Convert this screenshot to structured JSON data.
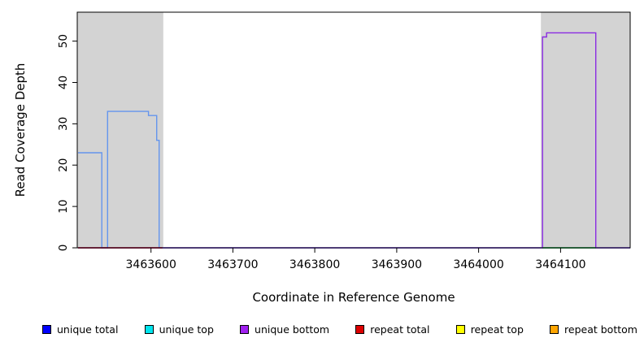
{
  "chart_data": {
    "type": "line",
    "title": "",
    "xlabel": "Coordinate in Reference Genome",
    "ylabel": "Read Coverage Depth",
    "xlim": [
      3463510,
      3464185
    ],
    "ylim": [
      0,
      57
    ],
    "xticks": [
      3463600,
      3463700,
      3463800,
      3463900,
      3464000,
      3464100
    ],
    "yticks": [
      0,
      10,
      20,
      30,
      40,
      50
    ],
    "grid": false,
    "legend_position": "bottom",
    "plot_bg": "#ffffff",
    "shaded_region_color": "#d3d3d3",
    "shaded_regions": [
      {
        "x0": 3463510,
        "x1": 3463615
      },
      {
        "x0": 3464076,
        "x1": 3464185
      }
    ],
    "series": [
      {
        "name": "unique total (left coverage block)",
        "color": "#6495ed",
        "points": [
          [
            3463511,
            23
          ],
          [
            3463540,
            23
          ],
          [
            3463540,
            0
          ],
          [
            3463547,
            0
          ],
          [
            3463547,
            33
          ],
          [
            3463597,
            33
          ],
          [
            3463597,
            32
          ],
          [
            3463607,
            32
          ],
          [
            3463607,
            26
          ],
          [
            3463610,
            26
          ],
          [
            3463610,
            0
          ],
          [
            3464185,
            0
          ]
        ]
      },
      {
        "name": "unique bottom (right coverage block)",
        "color": "#8a2be2",
        "points": [
          [
            3463511,
            0
          ],
          [
            3464078,
            0
          ],
          [
            3464078,
            51
          ],
          [
            3464083,
            51
          ],
          [
            3464083,
            52
          ],
          [
            3464143,
            52
          ],
          [
            3464143,
            0
          ],
          [
            3464185,
            0
          ]
        ]
      }
    ],
    "baseline_segments": [
      {
        "color": "#dd0000",
        "x0": 3463511,
        "x1": 3463614,
        "y": 0
      },
      {
        "color": "#00bb00",
        "x0": 3464078,
        "x1": 3464143,
        "y": 0
      }
    ],
    "legend": [
      {
        "label": "unique total",
        "color": "#0000ff"
      },
      {
        "label": "unique top",
        "color": "#00e5ee"
      },
      {
        "label": "unique bottom",
        "color": "#a020f0"
      },
      {
        "label": "repeat total",
        "color": "#dd0000"
      },
      {
        "label": "repeat top",
        "color": "#ffff00"
      },
      {
        "label": "repeat bottom",
        "color": "#ffa500"
      }
    ]
  }
}
